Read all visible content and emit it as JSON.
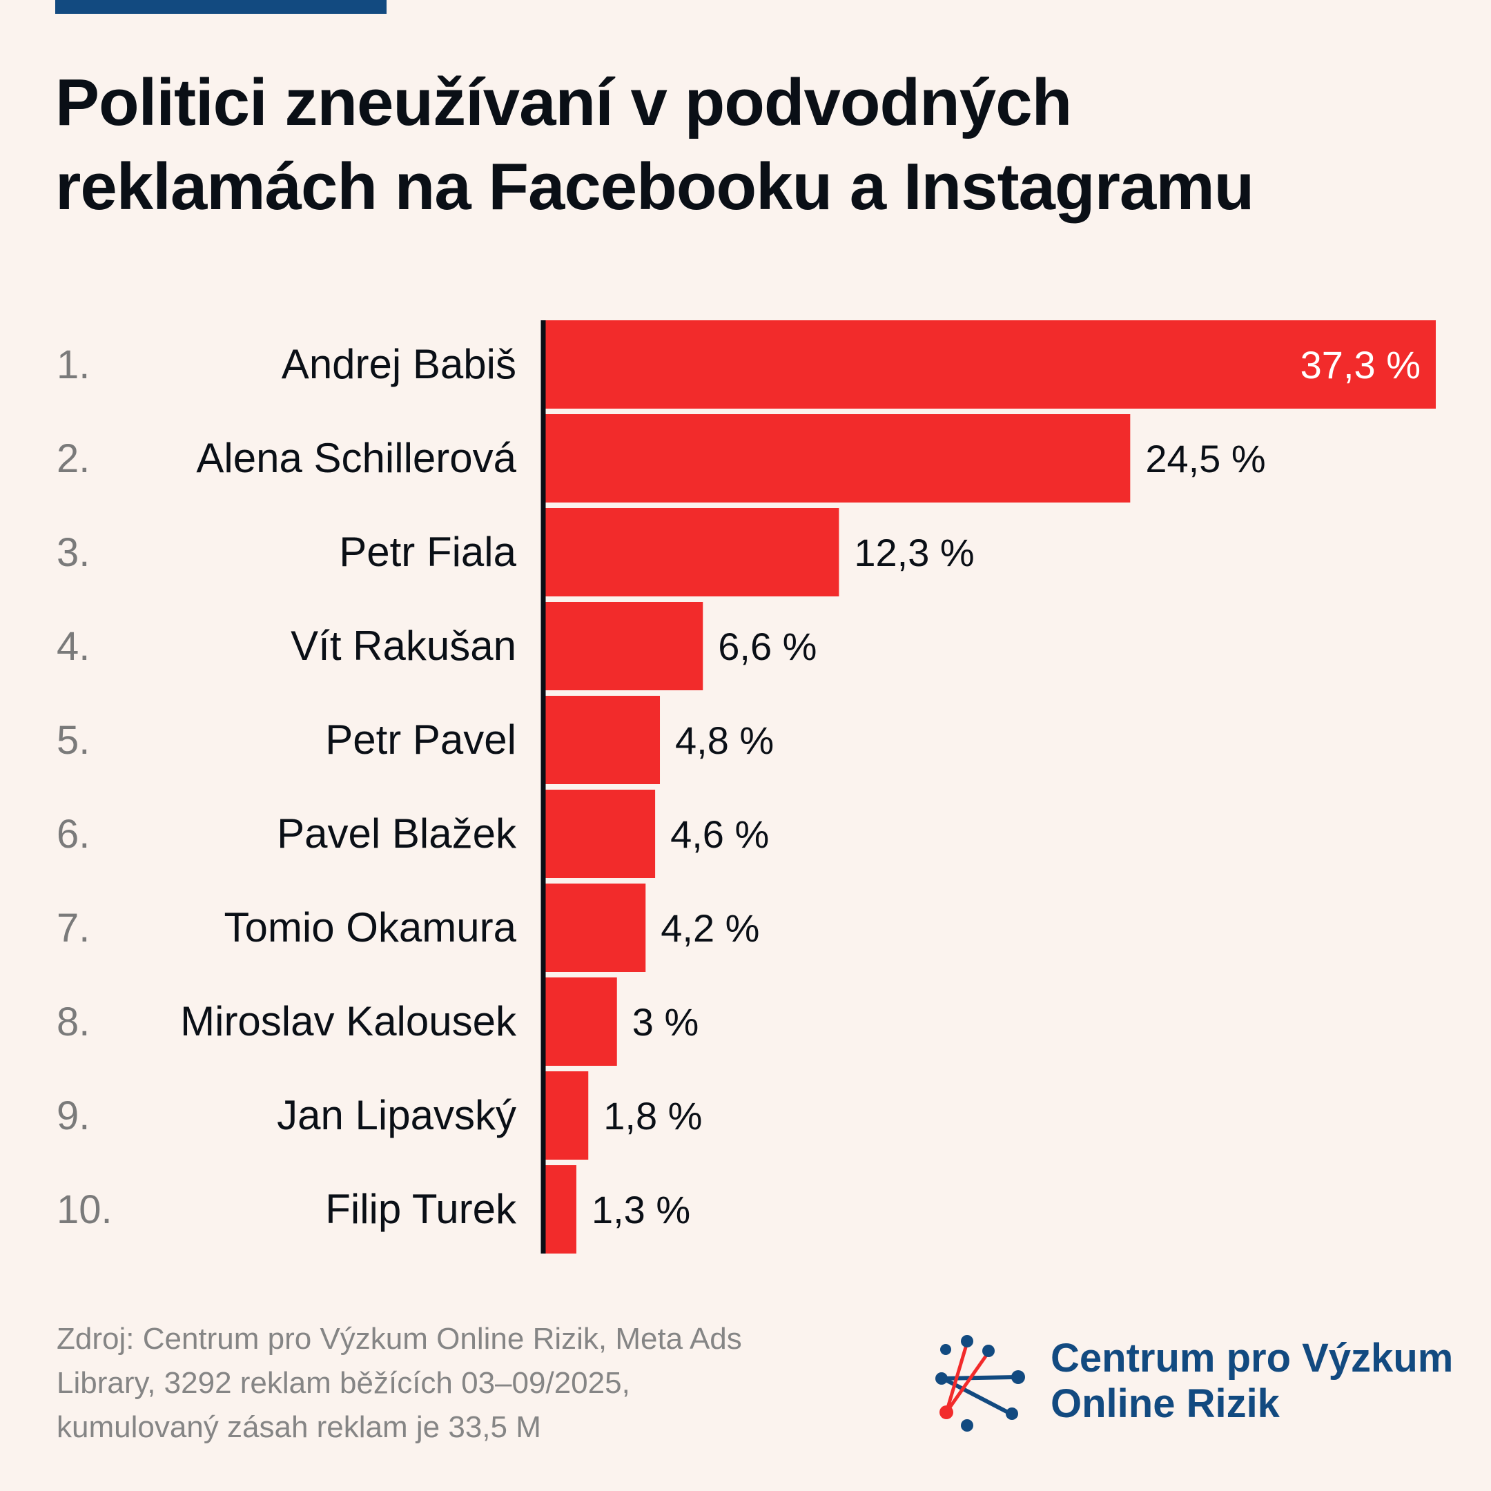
{
  "title_lines": [
    "Politici zneužívaní v podvodných",
    "reklamách na Facebooku a Instagramu"
  ],
  "colors": {
    "accent": "#124a80",
    "bar": "#f22b2b",
    "text": "#0a0f16",
    "rank": "#7a7a7a",
    "background": "#fbf3ee"
  },
  "chart_data": {
    "type": "bar",
    "orientation": "horizontal",
    "title": "Politici zneužívaní v podvodných reklamách na Facebooku a Instagramu",
    "ranks": [
      "1.",
      "2.",
      "3.",
      "4.",
      "5.",
      "6.",
      "7.",
      "8.",
      "9.",
      "10."
    ],
    "categories": [
      "Andrej Babiš",
      "Alena Schillerová",
      "Petr Fiala",
      "Vít Rakušan",
      "Petr Pavel",
      "Pavel Blažek",
      "Tomio Okamura",
      "Miroslav Kalousek",
      "Jan Lipavský",
      "Filip Turek"
    ],
    "values": [
      37.3,
      24.5,
      12.3,
      6.6,
      4.8,
      4.6,
      4.2,
      3,
      1.8,
      1.3
    ],
    "value_labels": [
      "37,3 %",
      "24,5 %",
      "12,3 %",
      "6,6 %",
      "4,8 %",
      "4,6 %",
      "4,2 %",
      "3 %",
      "1,8 %",
      "1,3 %"
    ],
    "unit": "%",
    "xlim": [
      0,
      37.3
    ],
    "grid": false,
    "legend": "none"
  },
  "source_lines": [
    "Zdroj: Centrum pro Výzkum Online Rizik, Meta Ads",
    "Library, 3292 reklam běžících 03–09/2025,",
    "kumulovaný zásah reklam je 33,5 M"
  ],
  "logo": {
    "lines": [
      "Centrum pro Výzkum",
      "Online Rizik"
    ]
  }
}
